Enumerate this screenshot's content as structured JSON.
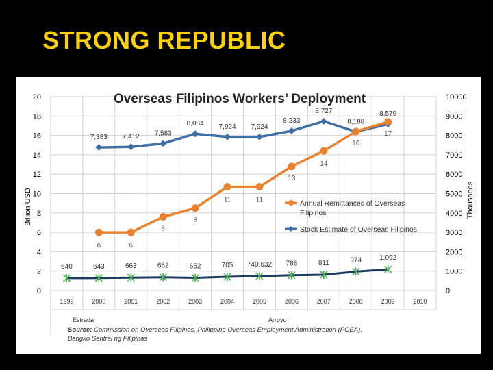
{
  "slide": {
    "title": "STRONG REPUBLIC"
  },
  "colors": {
    "background": "#000000",
    "title": "#ffd200",
    "remittance": "#e9822e",
    "stock": "#3f6fa4",
    "deployment": "#1f3a62",
    "deployment_marker": "#4caf50",
    "grid": "#d0d0d0"
  },
  "chart_data": {
    "type": "line",
    "title": "Overseas Filipinos Workers’ Deployment",
    "ylabel": "Billion USD",
    "y2label": "Thousands",
    "ylim": [
      0,
      20
    ],
    "y2lim": [
      0,
      10000
    ],
    "yticks": [
      "0",
      "2",
      "4",
      "6",
      "8",
      "10",
      "12",
      "14",
      "16",
      "18",
      "20"
    ],
    "y2ticks": [
      "0",
      "1000",
      "2000",
      "3000",
      "4000",
      "5000",
      "6000",
      "7000",
      "8000",
      "9000",
      "10000"
    ],
    "categories": [
      "1999",
      "2000",
      "2001",
      "2002",
      "2003",
      "2004",
      "2005",
      "2006",
      "2007",
      "2008",
      "2009",
      "2010"
    ],
    "series": [
      {
        "name": "Annual Remittances of Overseas Filipinos",
        "axis": "left",
        "values": [
          null,
          6,
          6,
          7.6,
          8.5,
          10.7,
          10.7,
          12.8,
          14.4,
          16.4,
          17.4,
          null
        ],
        "labels": [
          "",
          "6",
          "6",
          "8",
          "9",
          "11",
          "11",
          "13",
          "14",
          "16",
          "17",
          ""
        ]
      },
      {
        "name": "Stock Estimate of Overseas Filipinos",
        "axis": "right",
        "values": [
          null,
          7383,
          7412,
          7583,
          8084,
          7924,
          7924,
          8233,
          8727,
          8188,
          8579,
          null
        ],
        "labels": [
          "",
          "7,383",
          "7,412",
          "7,583",
          "8,084",
          "7,924",
          "7,924",
          "8,233",
          "8,727",
          "8,188",
          "8,579",
          ""
        ]
      },
      {
        "axis": "right",
        "values": [
          640,
          643,
          663,
          682,
          652,
          705,
          740.632,
          788,
          811,
          974,
          1092,
          null
        ],
        "labels": [
          "640",
          "643",
          "663",
          "682",
          "652",
          "705",
          "740.632",
          "788",
          "811",
          "974",
          "1,092",
          ""
        ]
      }
    ],
    "legend_position": "center-right",
    "grid": true,
    "annotations": {
      "estrada": "Estrada",
      "arroyo": "Arroyo"
    },
    "source": {
      "label": "Source:",
      "line1": "Commission on Overseas Filipinos,  Philippine Overseas Employment Administration (POEA),",
      "line2": "Bangko Sentral ng Pilipinas"
    }
  }
}
